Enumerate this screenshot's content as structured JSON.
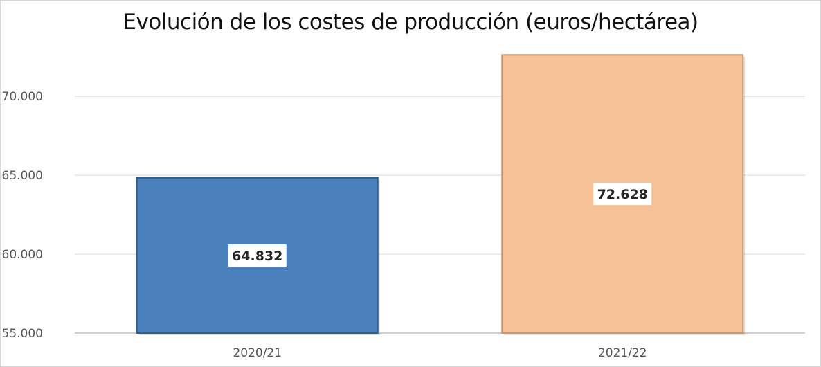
{
  "chart_data": {
    "type": "bar",
    "title": "Evolución de los costes de producción (euros/hectárea)",
    "xlabel": "",
    "ylabel": "",
    "categories": [
      "2020/21",
      "2021/22"
    ],
    "values": [
      64832,
      72628
    ],
    "data_labels": [
      "64.832",
      "72.628"
    ],
    "ylim": [
      55000,
      72800
    ],
    "yticks": [
      55000,
      60000,
      65000,
      70000
    ],
    "ytick_labels": [
      "55.000",
      "60.000",
      "65.000",
      "70.000"
    ],
    "grid": true,
    "legend": "none",
    "colors": [
      "#4a81bd",
      "#f6c197"
    ],
    "bar_edge_colors": [
      "#2f5f8f",
      "#c9956b"
    ]
  }
}
